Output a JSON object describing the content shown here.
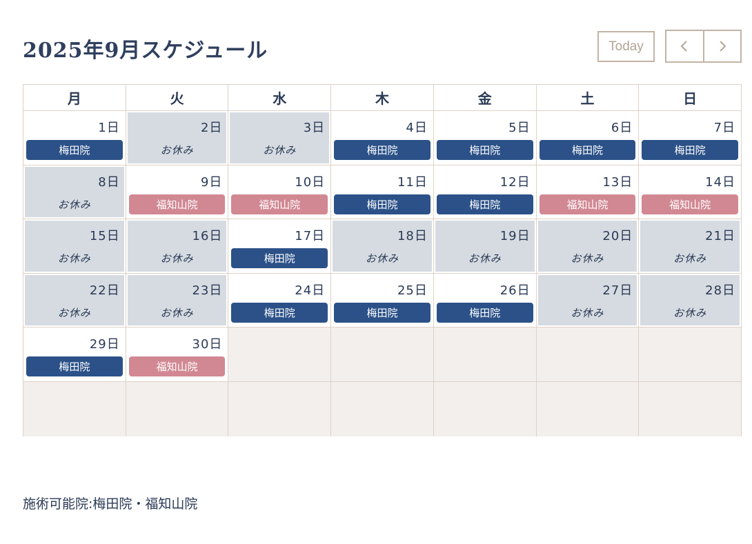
{
  "title": "2025年9月スケジュール",
  "nav": {
    "today_label": "Today",
    "prev_icon": "chevron-left-icon",
    "next_icon": "chevron-right-icon"
  },
  "weekdays": [
    "月",
    "火",
    "水",
    "木",
    "金",
    "土",
    "日"
  ],
  "colors": {
    "umeda": "#2b5188",
    "fukuchiyama": "#d18893",
    "rest": "#d6dbe1",
    "empty": "#f3efec",
    "border": "#ddd1c6"
  },
  "weeks": [
    [
      {
        "day": "1日",
        "status": "work",
        "label": "梅田院",
        "clinic": "umeda"
      },
      {
        "day": "2日",
        "status": "rest",
        "label": "お休み"
      },
      {
        "day": "3日",
        "status": "rest",
        "label": "お休み"
      },
      {
        "day": "4日",
        "status": "work",
        "label": "梅田院",
        "clinic": "umeda"
      },
      {
        "day": "5日",
        "status": "work",
        "label": "梅田院",
        "clinic": "umeda"
      },
      {
        "day": "6日",
        "status": "work",
        "label": "梅田院",
        "clinic": "umeda"
      },
      {
        "day": "7日",
        "status": "work",
        "label": "梅田院",
        "clinic": "umeda"
      }
    ],
    [
      {
        "day": "8日",
        "status": "rest",
        "label": "お休み"
      },
      {
        "day": "9日",
        "status": "work",
        "label": "福知山院",
        "clinic": "fukuchiyama"
      },
      {
        "day": "10日",
        "status": "work",
        "label": "福知山院",
        "clinic": "fukuchiyama"
      },
      {
        "day": "11日",
        "status": "work",
        "label": "梅田院",
        "clinic": "umeda"
      },
      {
        "day": "12日",
        "status": "work",
        "label": "梅田院",
        "clinic": "umeda"
      },
      {
        "day": "13日",
        "status": "work",
        "label": "福知山院",
        "clinic": "fukuchiyama"
      },
      {
        "day": "14日",
        "status": "work",
        "label": "福知山院",
        "clinic": "fukuchiyama"
      }
    ],
    [
      {
        "day": "15日",
        "status": "rest",
        "label": "お休み"
      },
      {
        "day": "16日",
        "status": "rest",
        "label": "お休み"
      },
      {
        "day": "17日",
        "status": "work",
        "label": "梅田院",
        "clinic": "umeda"
      },
      {
        "day": "18日",
        "status": "rest",
        "label": "お休み"
      },
      {
        "day": "19日",
        "status": "rest",
        "label": "お休み"
      },
      {
        "day": "20日",
        "status": "rest",
        "label": "お休み"
      },
      {
        "day": "21日",
        "status": "rest",
        "label": "お休み"
      }
    ],
    [
      {
        "day": "22日",
        "status": "rest",
        "label": "お休み"
      },
      {
        "day": "23日",
        "status": "rest",
        "label": "お休み"
      },
      {
        "day": "24日",
        "status": "work",
        "label": "梅田院",
        "clinic": "umeda"
      },
      {
        "day": "25日",
        "status": "work",
        "label": "梅田院",
        "clinic": "umeda"
      },
      {
        "day": "26日",
        "status": "work",
        "label": "梅田院",
        "clinic": "umeda"
      },
      {
        "day": "27日",
        "status": "rest",
        "label": "お休み"
      },
      {
        "day": "28日",
        "status": "rest",
        "label": "お休み"
      }
    ],
    [
      {
        "day": "29日",
        "status": "work",
        "label": "梅田院",
        "clinic": "umeda"
      },
      {
        "day": "30日",
        "status": "work",
        "label": "福知山院",
        "clinic": "fukuchiyama"
      },
      {
        "status": "empty"
      },
      {
        "status": "empty"
      },
      {
        "status": "empty"
      },
      {
        "status": "empty"
      },
      {
        "status": "empty"
      }
    ],
    [
      {
        "status": "empty"
      },
      {
        "status": "empty"
      },
      {
        "status": "empty"
      },
      {
        "status": "empty"
      },
      {
        "status": "empty"
      },
      {
        "status": "empty"
      },
      {
        "status": "empty"
      }
    ]
  ],
  "footer": {
    "note": "施術可能院:梅田院・福知山院"
  }
}
